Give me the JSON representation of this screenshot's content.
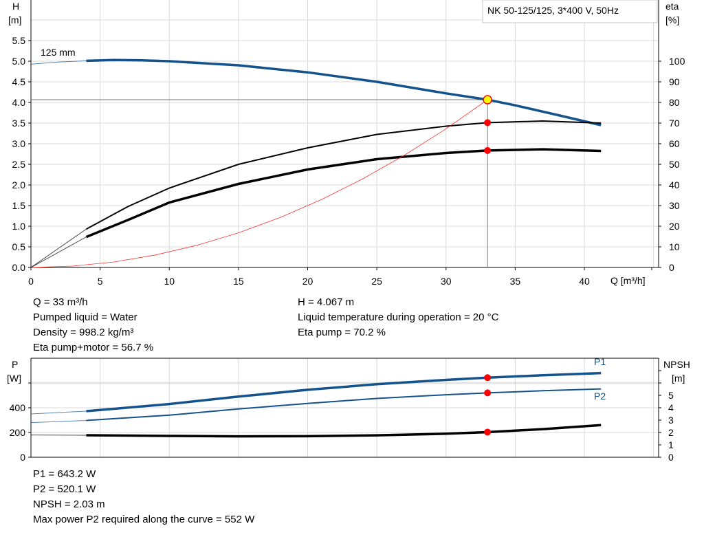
{
  "chart_data": [
    {
      "type": "line",
      "title": "NK 50-125/125, 3*400 V, 50Hz",
      "xlabel": "Q [m³/h]",
      "ylabel_left": [
        "H",
        "[m]"
      ],
      "ylabel_right": [
        "eta",
        "[%]"
      ],
      "xlim": [
        0,
        45
      ],
      "ylim_left": [
        0,
        6
      ],
      "ylim_right": [
        0,
        120
      ],
      "x_ticks": [
        "0",
        "5",
        "10",
        "15",
        "20",
        "25",
        "30",
        "35",
        "40"
      ],
      "y_ticks_left": [
        "0.0",
        "0.5",
        "1.0",
        "1.5",
        "2.0",
        "2.5",
        "3.0",
        "3.5",
        "4.0",
        "4.5",
        "5.0",
        "5.5"
      ],
      "y_ticks_right": [
        "0",
        "10",
        "20",
        "30",
        "40",
        "50",
        "60",
        "70",
        "80",
        "90",
        "100"
      ],
      "grid": true,
      "curve_label": "125 mm",
      "series": [
        {
          "key": "H",
          "axis": "left",
          "color": "#14528c",
          "points": [
            [
              0,
              4.93
            ],
            [
              2,
              4.98
            ],
            [
              4,
              5.01
            ],
            [
              6,
              5.03
            ],
            [
              8,
              5.02
            ],
            [
              10,
              5.0
            ],
            [
              15,
              4.9
            ],
            [
              20,
              4.73
            ],
            [
              25,
              4.5
            ],
            [
              30,
              4.22
            ],
            [
              33,
              4.067
            ],
            [
              35,
              3.93
            ],
            [
              38,
              3.7
            ],
            [
              41.2,
              3.45
            ]
          ]
        },
        {
          "key": "eta_pump",
          "axis": "right",
          "color": "#000000",
          "points": [
            [
              0,
              0
            ],
            [
              4,
              18.6
            ],
            [
              7,
              29.5
            ],
            [
              10,
              38.5
            ],
            [
              15,
              50
            ],
            [
              20,
              58
            ],
            [
              25,
              64.5
            ],
            [
              30,
              68.5
            ],
            [
              33,
              70.2
            ],
            [
              37,
              71
            ],
            [
              41.2,
              70
            ]
          ]
        },
        {
          "key": "eta_pump_motor",
          "axis": "right",
          "color": "#000000",
          "points": [
            [
              0,
              0
            ],
            [
              4,
              14.8
            ],
            [
              7,
              23
            ],
            [
              10,
              31.5
            ],
            [
              15,
              40.5
            ],
            [
              20,
              47.5
            ],
            [
              25,
              52.5
            ],
            [
              30,
              55.5
            ],
            [
              33,
              56.7
            ],
            [
              37,
              57.3
            ],
            [
              41.2,
              56.5
            ]
          ]
        },
        {
          "key": "system",
          "axis": "left",
          "color": "#ff3030",
          "points": [
            [
              0,
              0
            ],
            [
              3,
              0.034
            ],
            [
              6,
              0.134
            ],
            [
              9,
              0.303
            ],
            [
              12,
              0.538
            ],
            [
              15,
              0.84
            ],
            [
              18,
              1.21
            ],
            [
              21,
              1.647
            ],
            [
              24,
              2.151
            ],
            [
              27,
              2.723
            ],
            [
              30,
              3.361
            ],
            [
              33,
              4.067
            ]
          ]
        }
      ],
      "duty_point": {
        "Q": 33,
        "H": 4.067,
        "eta_pump": 70.2,
        "eta_pump_motor": 56.7
      }
    },
    {
      "type": "line",
      "ylabel_left": [
        "P",
        "[W]"
      ],
      "ylabel_right": [
        "NPSH",
        "[m]"
      ],
      "xlim": [
        0,
        45
      ],
      "ylim_left": [
        0,
        750
      ],
      "ylim_right": [
        0,
        7.5
      ],
      "y_ticks_left": [
        "0",
        "200",
        "400"
      ],
      "y_ticks_right": [
        "0",
        "1",
        "2",
        "3",
        "4",
        "5"
      ],
      "grid": true,
      "series": [
        {
          "key": "P1",
          "name": "P1",
          "axis": "left",
          "color": "#14528c",
          "points": [
            [
              0,
              350
            ],
            [
              4,
              372
            ],
            [
              10,
              430
            ],
            [
              15,
              490
            ],
            [
              20,
              545
            ],
            [
              25,
              590
            ],
            [
              30,
              625
            ],
            [
              33,
              643.2
            ],
            [
              37,
              662
            ],
            [
              41.2,
              680
            ]
          ]
        },
        {
          "key": "P2",
          "name": "P2",
          "axis": "left",
          "color": "#14528c",
          "points": [
            [
              0,
              280
            ],
            [
              4,
              297
            ],
            [
              10,
              340
            ],
            [
              15,
              390
            ],
            [
              20,
              435
            ],
            [
              25,
              475
            ],
            [
              30,
              505
            ],
            [
              33,
              520.1
            ],
            [
              37,
              537
            ],
            [
              41.2,
              552
            ]
          ]
        },
        {
          "key": "NPSH",
          "axis": "right",
          "color": "#000000",
          "points": [
            [
              0,
              1.8
            ],
            [
              4,
              1.78
            ],
            [
              10,
              1.72
            ],
            [
              15,
              1.69
            ],
            [
              20,
              1.7
            ],
            [
              25,
              1.77
            ],
            [
              30,
              1.9
            ],
            [
              33,
              2.03
            ],
            [
              37,
              2.27
            ],
            [
              41.2,
              2.6
            ]
          ]
        }
      ],
      "duty_point": {
        "Q": 33,
        "P1": 643.2,
        "P2": 520.1,
        "NPSH": 2.03
      }
    }
  ],
  "info_top": {
    "left": [
      "Q = 33 m³/h",
      "Pumped liquid = Water",
      "Density = 998.2 kg/m³",
      "Eta pump+motor = 56.7 %"
    ],
    "right": [
      "H = 4.067 m",
      "Liquid temperature during operation = 20 °C",
      "Eta pump = 70.2 %"
    ]
  },
  "info_bottom": [
    "P1 = 643.2 W",
    "P2 = 520.1 W",
    "NPSH = 2.03 m",
    "Max power P2 required along the curve = 552 W"
  ]
}
